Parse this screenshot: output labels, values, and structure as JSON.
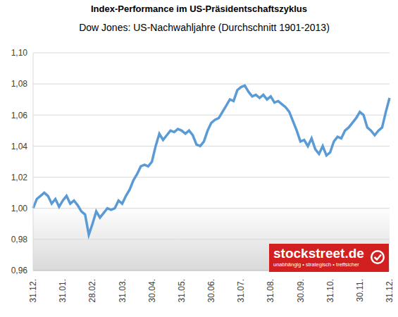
{
  "chart_data": {
    "type": "line",
    "title": "Index-Performance im US-Präsidentschaftszyklus",
    "subtitle": "Dow Jones: US-Nachwahljahre (Durchschnitt 1901-2013)",
    "annotations": [
      "stockstreet.de",
      "unabhängig • strategisch • treffsicher"
    ],
    "categories": [
      "31.12.",
      null,
      null,
      null,
      null,
      null,
      null,
      null,
      "31.01.",
      null,
      null,
      null,
      null,
      null,
      null,
      null,
      "28.02.",
      null,
      null,
      null,
      null,
      null,
      null,
      null,
      "31.03.",
      null,
      null,
      null,
      null,
      null,
      null,
      null,
      "30.04.",
      null,
      null,
      null,
      null,
      null,
      null,
      null,
      "31.05.",
      null,
      null,
      null,
      null,
      null,
      null,
      null,
      "30.06.",
      null,
      null,
      null,
      null,
      null,
      null,
      null,
      "31.07.",
      null,
      null,
      null,
      null,
      null,
      null,
      null,
      "31.08.",
      null,
      null,
      null,
      null,
      null,
      null,
      null,
      "30.09.",
      null,
      null,
      null,
      null,
      null,
      null,
      null,
      "31.10.",
      null,
      null,
      null,
      null,
      null,
      null,
      null,
      "30.11.",
      null,
      null,
      null,
      null,
      null,
      null,
      null,
      "31.12."
    ],
    "values": [
      1.0,
      1.006,
      1.008,
      1.01,
      1.008,
      1.003,
      1.006,
      1.001,
      1.005,
      1.008,
      1.003,
      1.005,
      1.002,
      0.998,
      0.996,
      0.983,
      0.99,
      0.998,
      0.994,
      0.997,
      1.0,
      0.999,
      1.0,
      1.005,
      1.003,
      1.008,
      1.012,
      1.018,
      1.022,
      1.027,
      1.028,
      1.027,
      1.03,
      1.04,
      1.048,
      1.044,
      1.047,
      1.05,
      1.049,
      1.051,
      1.05,
      1.048,
      1.05,
      1.047,
      1.041,
      1.04,
      1.043,
      1.05,
      1.055,
      1.057,
      1.058,
      1.062,
      1.066,
      1.07,
      1.069,
      1.076,
      1.078,
      1.079,
      1.075,
      1.072,
      1.073,
      1.071,
      1.073,
      1.07,
      1.072,
      1.068,
      1.069,
      1.067,
      1.065,
      1.062,
      1.056,
      1.05,
      1.043,
      1.044,
      1.04,
      1.045,
      1.038,
      1.035,
      1.04,
      1.034,
      1.036,
      1.043,
      1.046,
      1.045,
      1.05,
      1.052,
      1.055,
      1.058,
      1.062,
      1.06,
      1.052,
      1.05,
      1.047,
      1.05,
      1.052,
      1.062,
      1.071
    ],
    "color": "#5b9bd5",
    "ylim": [
      0.96,
      1.1
    ],
    "yticks": [
      {
        "value": 0.96,
        "label": "0,96"
      },
      {
        "value": 0.98,
        "label": "0,98"
      },
      {
        "value": 1.0,
        "label": "1,00"
      },
      {
        "value": 1.02,
        "label": "1,02"
      },
      {
        "value": 1.04,
        "label": "1,04"
      },
      {
        "value": 1.06,
        "label": "1,06"
      },
      {
        "value": 1.08,
        "label": "1,08"
      },
      {
        "value": 1.1,
        "label": "1,10"
      }
    ],
    "grid": true
  }
}
